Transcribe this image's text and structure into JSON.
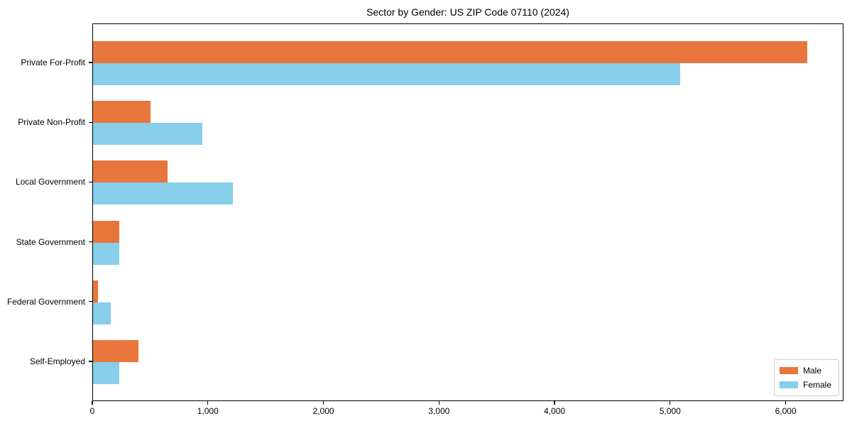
{
  "title": "Sector by Gender: US ZIP Code 07110 (2024)",
  "chart_data": {
    "type": "bar",
    "orientation": "horizontal",
    "title": "Sector by Gender: US ZIP Code 07110 (2024)",
    "xlabel": "",
    "ylabel": "",
    "categories": [
      "Private For-Profit",
      "Private Non-Profit",
      "Local Government",
      "State Government",
      "Federal Government",
      "Self-Employed"
    ],
    "series": [
      {
        "name": "Male",
        "color": "#e8763c",
        "values": [
          6180,
          500,
          645,
          225,
          45,
          395
        ]
      },
      {
        "name": "Female",
        "color": "#87ceeb",
        "values": [
          5080,
          945,
          1210,
          230,
          155,
          225
        ]
      }
    ],
    "xlim": [
      0,
      6500
    ],
    "x_ticks": [
      0,
      1000,
      2000,
      3000,
      4000,
      5000,
      6000
    ],
    "x_tick_labels": [
      "0",
      "1,000",
      "2,000",
      "3,000",
      "4,000",
      "5,000",
      "6,000"
    ],
    "grid": false,
    "legend_position": "lower right",
    "frame": true
  },
  "legend": {
    "items": [
      {
        "label": "Male",
        "color": "#e8763c"
      },
      {
        "label": "Female",
        "color": "#87ceeb"
      }
    ]
  }
}
